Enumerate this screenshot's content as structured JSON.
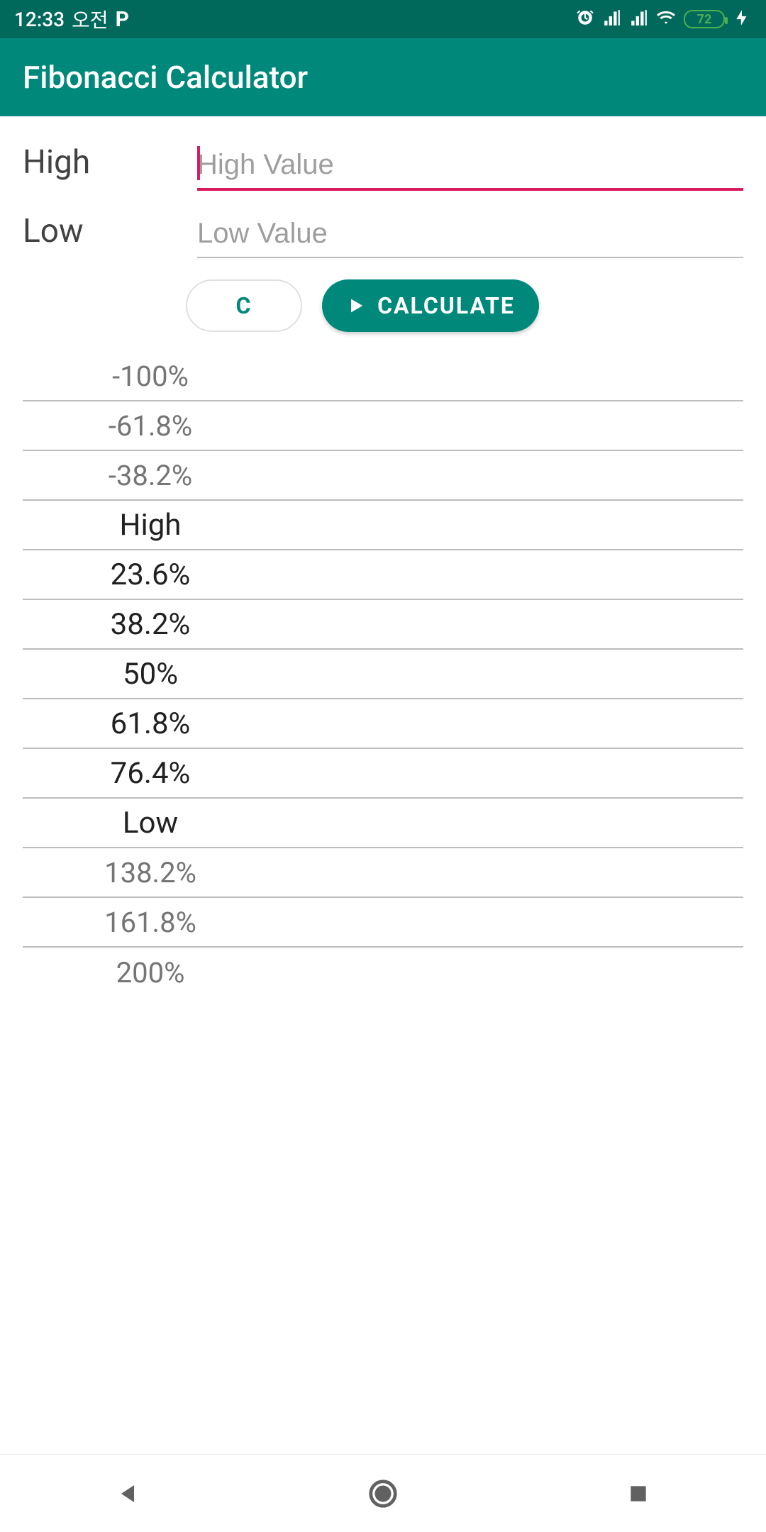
{
  "status": {
    "time": "12:33",
    "ampm": "오전",
    "battery": "72"
  },
  "app": {
    "title": "Fibonacci Calculator"
  },
  "fields": {
    "high": {
      "label": "High",
      "placeholder": "High Value"
    },
    "low": {
      "label": "Low",
      "placeholder": "Low Value"
    }
  },
  "buttons": {
    "clear": "C",
    "calculate": "CALCULATE"
  },
  "colors": {
    "statusbar": "#00695c",
    "appbar": "#00897b",
    "accent_pink": "#d81b60",
    "muted_text": "#757575",
    "strong_text": "#212121",
    "border": "#bdbdbd"
  },
  "levels": [
    {
      "label": "-100%",
      "style": "muted"
    },
    {
      "label": "-61.8%",
      "style": "muted"
    },
    {
      "label": "-38.2%",
      "style": "muted"
    },
    {
      "label": "High",
      "style": "strong"
    },
    {
      "label": "23.6%",
      "style": "strong"
    },
    {
      "label": "38.2%",
      "style": "strong"
    },
    {
      "label": "50%",
      "style": "strong"
    },
    {
      "label": "61.8%",
      "style": "strong"
    },
    {
      "label": "76.4%",
      "style": "strong"
    },
    {
      "label": "Low",
      "style": "strong"
    },
    {
      "label": "138.2%",
      "style": "muted"
    },
    {
      "label": "161.8%",
      "style": "muted"
    },
    {
      "label": "200%",
      "style": "muted"
    }
  ]
}
